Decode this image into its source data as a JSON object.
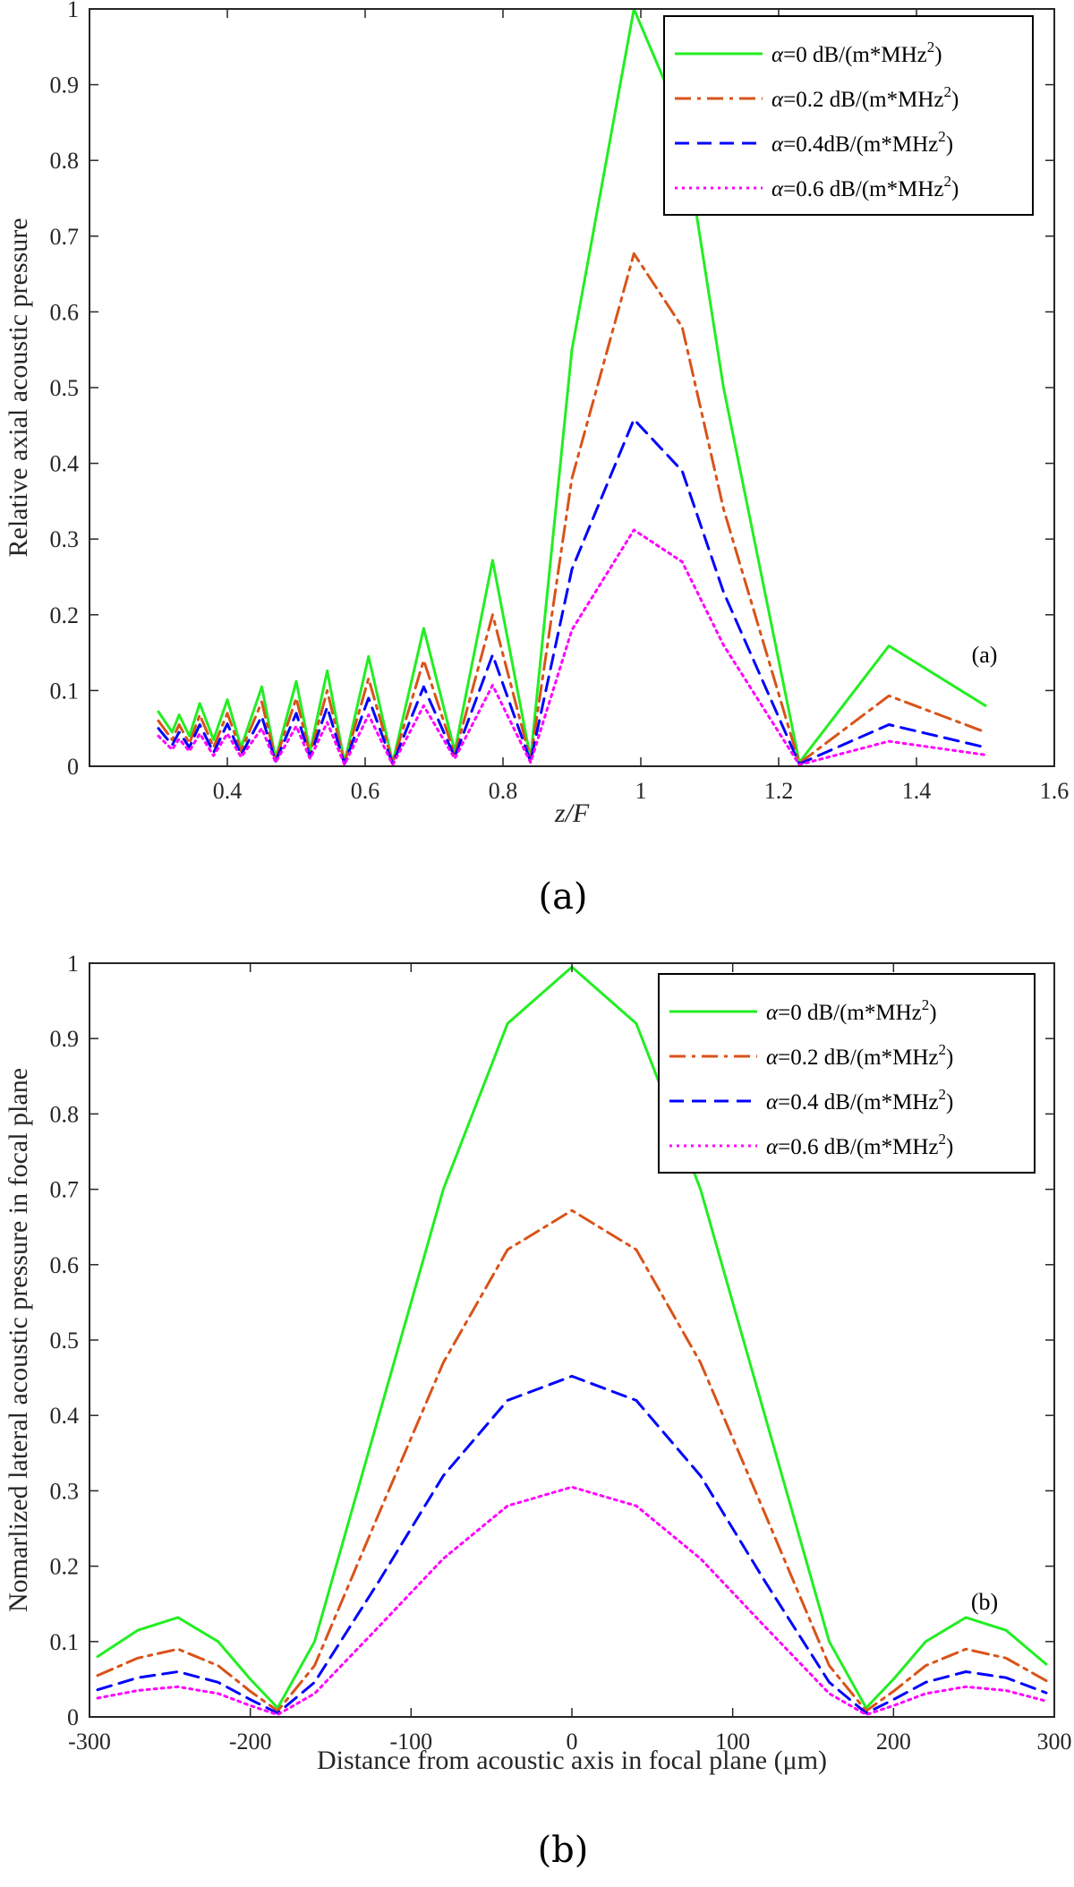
{
  "chart_data": [
    {
      "type": "line",
      "caption": "(a)",
      "annotation": "(a)",
      "xlabel": "z/F",
      "ylabel": "Relative axial acoustic pressure",
      "xlim": [
        0.2,
        1.6
      ],
      "ylim": [
        0,
        1
      ],
      "xticks": [
        0.4,
        0.6,
        0.8,
        1,
        1.2,
        1.4,
        1.6
      ],
      "yticks": [
        0,
        0.1,
        0.2,
        0.3,
        0.4,
        0.5,
        0.6,
        0.7,
        0.8,
        0.9,
        1
      ],
      "legend_position": "top-right",
      "legend": [
        {
          "prefix": "α=0 dB/(m*MHz",
          "sup": "2",
          "suffix": ")"
        },
        {
          "prefix": "α=0.2 dB/(m*MHz",
          "sup": "2",
          "suffix": ")"
        },
        {
          "prefix": "α=0.4dB/(m*MHz",
          "sup": "2",
          "suffix": ")"
        },
        {
          "prefix": "α=0.6 dB/(m*MHz",
          "sup": "2",
          "suffix": ")"
        }
      ],
      "series": [
        {
          "color": "#22ee22",
          "dash": "solid",
          "values": [
            [
              0.3,
              0.072
            ],
            [
              0.32,
              0.045
            ],
            [
              0.33,
              0.068
            ],
            [
              0.345,
              0.04
            ],
            [
              0.36,
              0.083
            ],
            [
              0.38,
              0.035
            ],
            [
              0.4,
              0.088
            ],
            [
              0.42,
              0.025
            ],
            [
              0.45,
              0.105
            ],
            [
              0.47,
              0.01
            ],
            [
              0.5,
              0.112
            ],
            [
              0.52,
              0.02
            ],
            [
              0.545,
              0.126
            ],
            [
              0.57,
              0.005
            ],
            [
              0.605,
              0.145
            ],
            [
              0.64,
              0.005
            ],
            [
              0.685,
              0.182
            ],
            [
              0.73,
              0.02
            ],
            [
              0.785,
              0.272
            ],
            [
              0.84,
              0.01
            ],
            [
              0.9,
              0.55
            ],
            [
              0.99,
              1.0
            ],
            [
              1.06,
              0.85
            ],
            [
              1.12,
              0.5
            ],
            [
              1.23,
              0.005
            ],
            [
              1.36,
              0.159
            ],
            [
              1.5,
              0.08
            ]
          ]
        },
        {
          "color": "#d95319",
          "dash": "dashdot",
          "values": [
            [
              0.3,
              0.06
            ],
            [
              0.32,
              0.035
            ],
            [
              0.33,
              0.055
            ],
            [
              0.345,
              0.03
            ],
            [
              0.36,
              0.068
            ],
            [
              0.38,
              0.025
            ],
            [
              0.4,
              0.07
            ],
            [
              0.42,
              0.02
            ],
            [
              0.45,
              0.085
            ],
            [
              0.47,
              0.008
            ],
            [
              0.5,
              0.09
            ],
            [
              0.52,
              0.015
            ],
            [
              0.545,
              0.1
            ],
            [
              0.57,
              0.004
            ],
            [
              0.605,
              0.116
            ],
            [
              0.64,
              0.004
            ],
            [
              0.685,
              0.14
            ],
            [
              0.73,
              0.015
            ],
            [
              0.785,
              0.2
            ],
            [
              0.84,
              0.008
            ],
            [
              0.9,
              0.38
            ],
            [
              0.99,
              0.677
            ],
            [
              1.06,
              0.58
            ],
            [
              1.12,
              0.34
            ],
            [
              1.23,
              0.004
            ],
            [
              1.36,
              0.093
            ],
            [
              1.5,
              0.045
            ]
          ]
        },
        {
          "color": "#0000ff",
          "dash": "dash",
          "values": [
            [
              0.3,
              0.05
            ],
            [
              0.32,
              0.028
            ],
            [
              0.33,
              0.045
            ],
            [
              0.345,
              0.025
            ],
            [
              0.36,
              0.055
            ],
            [
              0.38,
              0.018
            ],
            [
              0.4,
              0.056
            ],
            [
              0.42,
              0.015
            ],
            [
              0.45,
              0.066
            ],
            [
              0.47,
              0.006
            ],
            [
              0.5,
              0.07
            ],
            [
              0.52,
              0.012
            ],
            [
              0.545,
              0.078
            ],
            [
              0.57,
              0.003
            ],
            [
              0.605,
              0.09
            ],
            [
              0.64,
              0.003
            ],
            [
              0.685,
              0.105
            ],
            [
              0.73,
              0.012
            ],
            [
              0.785,
              0.147
            ],
            [
              0.84,
              0.006
            ],
            [
              0.9,
              0.26
            ],
            [
              0.99,
              0.458
            ],
            [
              1.06,
              0.39
            ],
            [
              1.12,
              0.23
            ],
            [
              1.23,
              0.003
            ],
            [
              1.36,
              0.055
            ],
            [
              1.5,
              0.025
            ]
          ]
        },
        {
          "color": "#ff00ff",
          "dash": "dot",
          "values": [
            [
              0.3,
              0.04
            ],
            [
              0.32,
              0.022
            ],
            [
              0.33,
              0.036
            ],
            [
              0.345,
              0.02
            ],
            [
              0.36,
              0.043
            ],
            [
              0.38,
              0.014
            ],
            [
              0.4,
              0.043
            ],
            [
              0.42,
              0.012
            ],
            [
              0.45,
              0.05
            ],
            [
              0.47,
              0.005
            ],
            [
              0.5,
              0.053
            ],
            [
              0.52,
              0.01
            ],
            [
              0.545,
              0.058
            ],
            [
              0.57,
              0.002
            ],
            [
              0.605,
              0.068
            ],
            [
              0.64,
              0.002
            ],
            [
              0.685,
              0.08
            ],
            [
              0.73,
              0.01
            ],
            [
              0.785,
              0.107
            ],
            [
              0.84,
              0.005
            ],
            [
              0.9,
              0.18
            ],
            [
              0.99,
              0.312
            ],
            [
              1.06,
              0.27
            ],
            [
              1.12,
              0.16
            ],
            [
              1.23,
              0.002
            ],
            [
              1.36,
              0.033
            ],
            [
              1.5,
              0.015
            ]
          ]
        }
      ]
    },
    {
      "type": "line",
      "caption": "(b)",
      "annotation": "(b)",
      "xlabel": "Distance from acoustic axis in focal plane (μm)",
      "ylabel": "Nomarlized lateral acoustic pressure in focal plane",
      "xlim": [
        -300,
        300
      ],
      "ylim": [
        0,
        1
      ],
      "xticks": [
        -300,
        -200,
        -100,
        0,
        100,
        200,
        300
      ],
      "yticks": [
        0,
        0.1,
        0.2,
        0.3,
        0.4,
        0.5,
        0.6,
        0.7,
        0.8,
        0.9,
        1
      ],
      "legend_position": "top-right",
      "legend": [
        {
          "prefix": "α=0 dB/(m*MHz",
          "sup": "2",
          "suffix": ")"
        },
        {
          "prefix": "α=0.2 dB/(m*MHz",
          "sup": "2",
          "suffix": ")"
        },
        {
          "prefix": "α=0.4 dB/(m*MHz",
          "sup": "2",
          "suffix": ")"
        },
        {
          "prefix": "α=0.6 dB/(m*MHz",
          "sup": "2",
          "suffix": ")"
        }
      ],
      "series": [
        {
          "color": "#22ee22",
          "dash": "solid",
          "values": [
            [
              -295,
              0.08
            ],
            [
              -270,
              0.115
            ],
            [
              -245,
              0.132
            ],
            [
              -220,
              0.1
            ],
            [
              -200,
              0.05
            ],
            [
              -183,
              0.012
            ],
            [
              -160,
              0.1
            ],
            [
              -120,
              0.4
            ],
            [
              -80,
              0.7
            ],
            [
              -40,
              0.92
            ],
            [
              0,
              0.995
            ],
            [
              40,
              0.92
            ],
            [
              80,
              0.7
            ],
            [
              120,
              0.4
            ],
            [
              160,
              0.1
            ],
            [
              183,
              0.012
            ],
            [
              200,
              0.05
            ],
            [
              220,
              0.1
            ],
            [
              245,
              0.132
            ],
            [
              270,
              0.115
            ],
            [
              295,
              0.07
            ]
          ]
        },
        {
          "color": "#d95319",
          "dash": "dashdot",
          "values": [
            [
              -295,
              0.055
            ],
            [
              -270,
              0.078
            ],
            [
              -245,
              0.09
            ],
            [
              -220,
              0.068
            ],
            [
              -200,
              0.034
            ],
            [
              -183,
              0.008
            ],
            [
              -160,
              0.068
            ],
            [
              -120,
              0.27
            ],
            [
              -80,
              0.47
            ],
            [
              -40,
              0.62
            ],
            [
              0,
              0.672
            ],
            [
              40,
              0.62
            ],
            [
              80,
              0.47
            ],
            [
              120,
              0.27
            ],
            [
              160,
              0.068
            ],
            [
              183,
              0.008
            ],
            [
              200,
              0.034
            ],
            [
              220,
              0.068
            ],
            [
              245,
              0.09
            ],
            [
              270,
              0.078
            ],
            [
              295,
              0.048
            ]
          ]
        },
        {
          "color": "#0000ff",
          "dash": "dash",
          "values": [
            [
              -295,
              0.036
            ],
            [
              -270,
              0.052
            ],
            [
              -245,
              0.06
            ],
            [
              -220,
              0.046
            ],
            [
              -200,
              0.023
            ],
            [
              -183,
              0.005
            ],
            [
              -160,
              0.046
            ],
            [
              -120,
              0.18
            ],
            [
              -80,
              0.32
            ],
            [
              -40,
              0.42
            ],
            [
              0,
              0.452
            ],
            [
              40,
              0.42
            ],
            [
              80,
              0.32
            ],
            [
              120,
              0.18
            ],
            [
              160,
              0.046
            ],
            [
              183,
              0.005
            ],
            [
              200,
              0.023
            ],
            [
              220,
              0.046
            ],
            [
              245,
              0.06
            ],
            [
              270,
              0.052
            ],
            [
              295,
              0.032
            ]
          ]
        },
        {
          "color": "#ff00ff",
          "dash": "dot",
          "values": [
            [
              -295,
              0.025
            ],
            [
              -270,
              0.035
            ],
            [
              -245,
              0.04
            ],
            [
              -220,
              0.031
            ],
            [
              -200,
              0.015
            ],
            [
              -183,
              0.003
            ],
            [
              -160,
              0.031
            ],
            [
              -120,
              0.12
            ],
            [
              -80,
              0.21
            ],
            [
              -40,
              0.28
            ],
            [
              0,
              0.305
            ],
            [
              40,
              0.28
            ],
            [
              80,
              0.21
            ],
            [
              120,
              0.12
            ],
            [
              160,
              0.031
            ],
            [
              183,
              0.003
            ],
            [
              200,
              0.015
            ],
            [
              220,
              0.031
            ],
            [
              245,
              0.04
            ],
            [
              270,
              0.035
            ],
            [
              295,
              0.021
            ]
          ]
        }
      ]
    }
  ]
}
